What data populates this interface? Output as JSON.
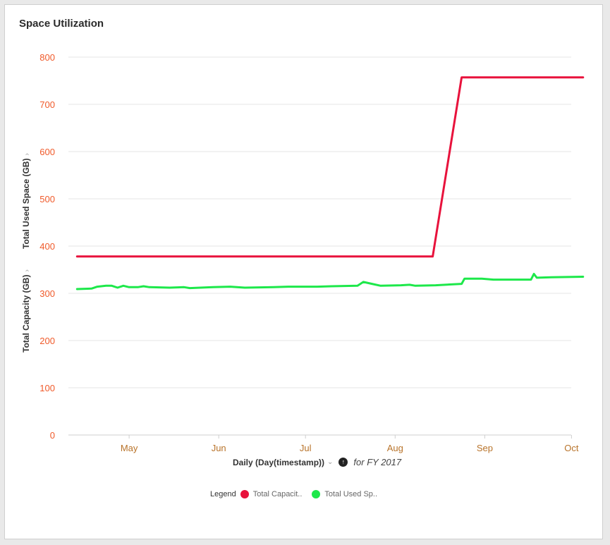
{
  "card": {
    "title": "Space Utilization"
  },
  "axes": {
    "y_title_top": "Total Used Space (GB)",
    "y_title_bottom": "Total Capacity (GB)",
    "y_chevron": "›"
  },
  "xaxis": {
    "label": "Daily (Day(timestamp))",
    "dropdown_glyph": "⌄",
    "sort_glyph": "↑",
    "period": "for FY 2017"
  },
  "legend": {
    "title": "Legend",
    "items": [
      {
        "label": "Total Capacit..",
        "color": "#e8123c"
      },
      {
        "label": "Total Used Sp..",
        "color": "#1de84a"
      }
    ]
  },
  "chart_data": {
    "type": "line",
    "title": "Space Utilization",
    "xlabel": "Daily (Day(timestamp))",
    "ylabel": "Total Capacity (GB) / Total Used Space (GB)",
    "ylim": [
      0,
      800
    ],
    "yticks": [
      0,
      100,
      200,
      300,
      400,
      500,
      600,
      700,
      800
    ],
    "xlim": [
      "2017-04-10",
      "2017-10-07"
    ],
    "xtick_labels": [
      {
        "label": "May",
        "date": "2017-05-01"
      },
      {
        "label": "Jun",
        "date": "2017-06-01"
      },
      {
        "label": "Jul",
        "date": "2017-07-01"
      },
      {
        "label": "Aug",
        "date": "2017-08-01"
      },
      {
        "label": "Sep",
        "date": "2017-09-01"
      },
      {
        "label": "Oct",
        "date": "2017-10-01"
      }
    ],
    "grid": true,
    "tick_color_y": "#f05a2a",
    "tick_color_x": "#b8732a",
    "series": [
      {
        "name": "Total Capacity",
        "color": "#e8123c",
        "points": [
          [
            "2017-04-13",
            378
          ],
          [
            "2017-08-14",
            378
          ],
          [
            "2017-08-24",
            757
          ],
          [
            "2017-10-05",
            757
          ]
        ]
      },
      {
        "name": "Total Used Space",
        "color": "#1de84a",
        "points": [
          [
            "2017-04-13",
            309
          ],
          [
            "2017-04-18",
            310
          ],
          [
            "2017-04-20",
            314
          ],
          [
            "2017-04-23",
            316
          ],
          [
            "2017-04-25",
            316
          ],
          [
            "2017-04-27",
            312
          ],
          [
            "2017-04-29",
            316
          ],
          [
            "2017-05-01",
            313
          ],
          [
            "2017-05-04",
            313
          ],
          [
            "2017-05-06",
            315
          ],
          [
            "2017-05-08",
            313
          ],
          [
            "2017-05-15",
            312
          ],
          [
            "2017-05-20",
            313
          ],
          [
            "2017-05-22",
            311
          ],
          [
            "2017-05-30",
            313
          ],
          [
            "2017-06-05",
            314
          ],
          [
            "2017-06-10",
            312
          ],
          [
            "2017-06-20",
            313
          ],
          [
            "2017-06-25",
            314
          ],
          [
            "2017-07-05",
            314
          ],
          [
            "2017-07-10",
            315
          ],
          [
            "2017-07-19",
            316
          ],
          [
            "2017-07-21",
            324
          ],
          [
            "2017-07-24",
            320
          ],
          [
            "2017-07-27",
            316
          ],
          [
            "2017-08-03",
            317
          ],
          [
            "2017-08-06",
            318
          ],
          [
            "2017-08-08",
            316
          ],
          [
            "2017-08-15",
            317
          ],
          [
            "2017-08-24",
            320
          ],
          [
            "2017-08-25",
            331
          ],
          [
            "2017-08-31",
            331
          ],
          [
            "2017-09-04",
            329
          ],
          [
            "2017-09-17",
            329
          ],
          [
            "2017-09-18",
            341
          ],
          [
            "2017-09-19",
            333
          ],
          [
            "2017-09-24",
            334
          ],
          [
            "2017-10-05",
            335
          ]
        ]
      }
    ]
  }
}
